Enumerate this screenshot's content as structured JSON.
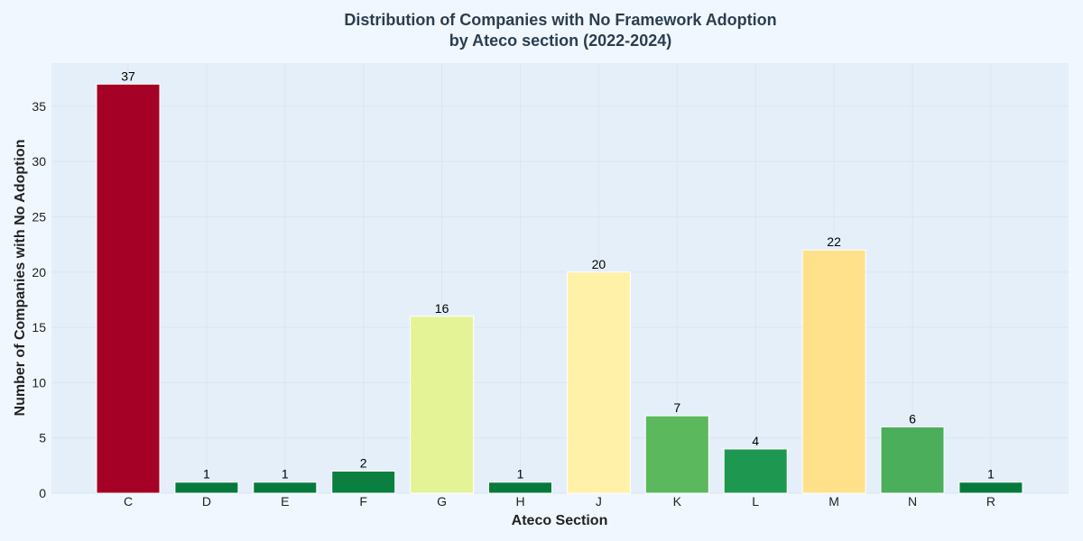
{
  "chart_data": {
    "type": "bar",
    "title": [
      "Distribution of Companies with No Framework Adoption",
      "by Ateco section (2022-2024)"
    ],
    "xlabel": "Ateco Section",
    "ylabel": "Number of Companies with No Adoption",
    "categories": [
      "C",
      "D",
      "E",
      "F",
      "G",
      "H",
      "J",
      "K",
      "L",
      "M",
      "N",
      "R"
    ],
    "values": [
      37,
      1,
      1,
      2,
      16,
      1,
      20,
      7,
      4,
      22,
      6,
      1
    ],
    "colors": [
      "#a50026",
      "#067a3d",
      "#067a3d",
      "#0a7f40",
      "#e4f396",
      "#067a3d",
      "#fff1a8",
      "#5cb85c",
      "#1e9850",
      "#fee18a",
      "#4aae5b",
      "#067a3d"
    ],
    "yticks": [
      0,
      5,
      10,
      15,
      20,
      25,
      30,
      35
    ],
    "ylim": [
      0,
      38.9
    ],
    "grid": true,
    "plot_background": "#e5eff9"
  }
}
